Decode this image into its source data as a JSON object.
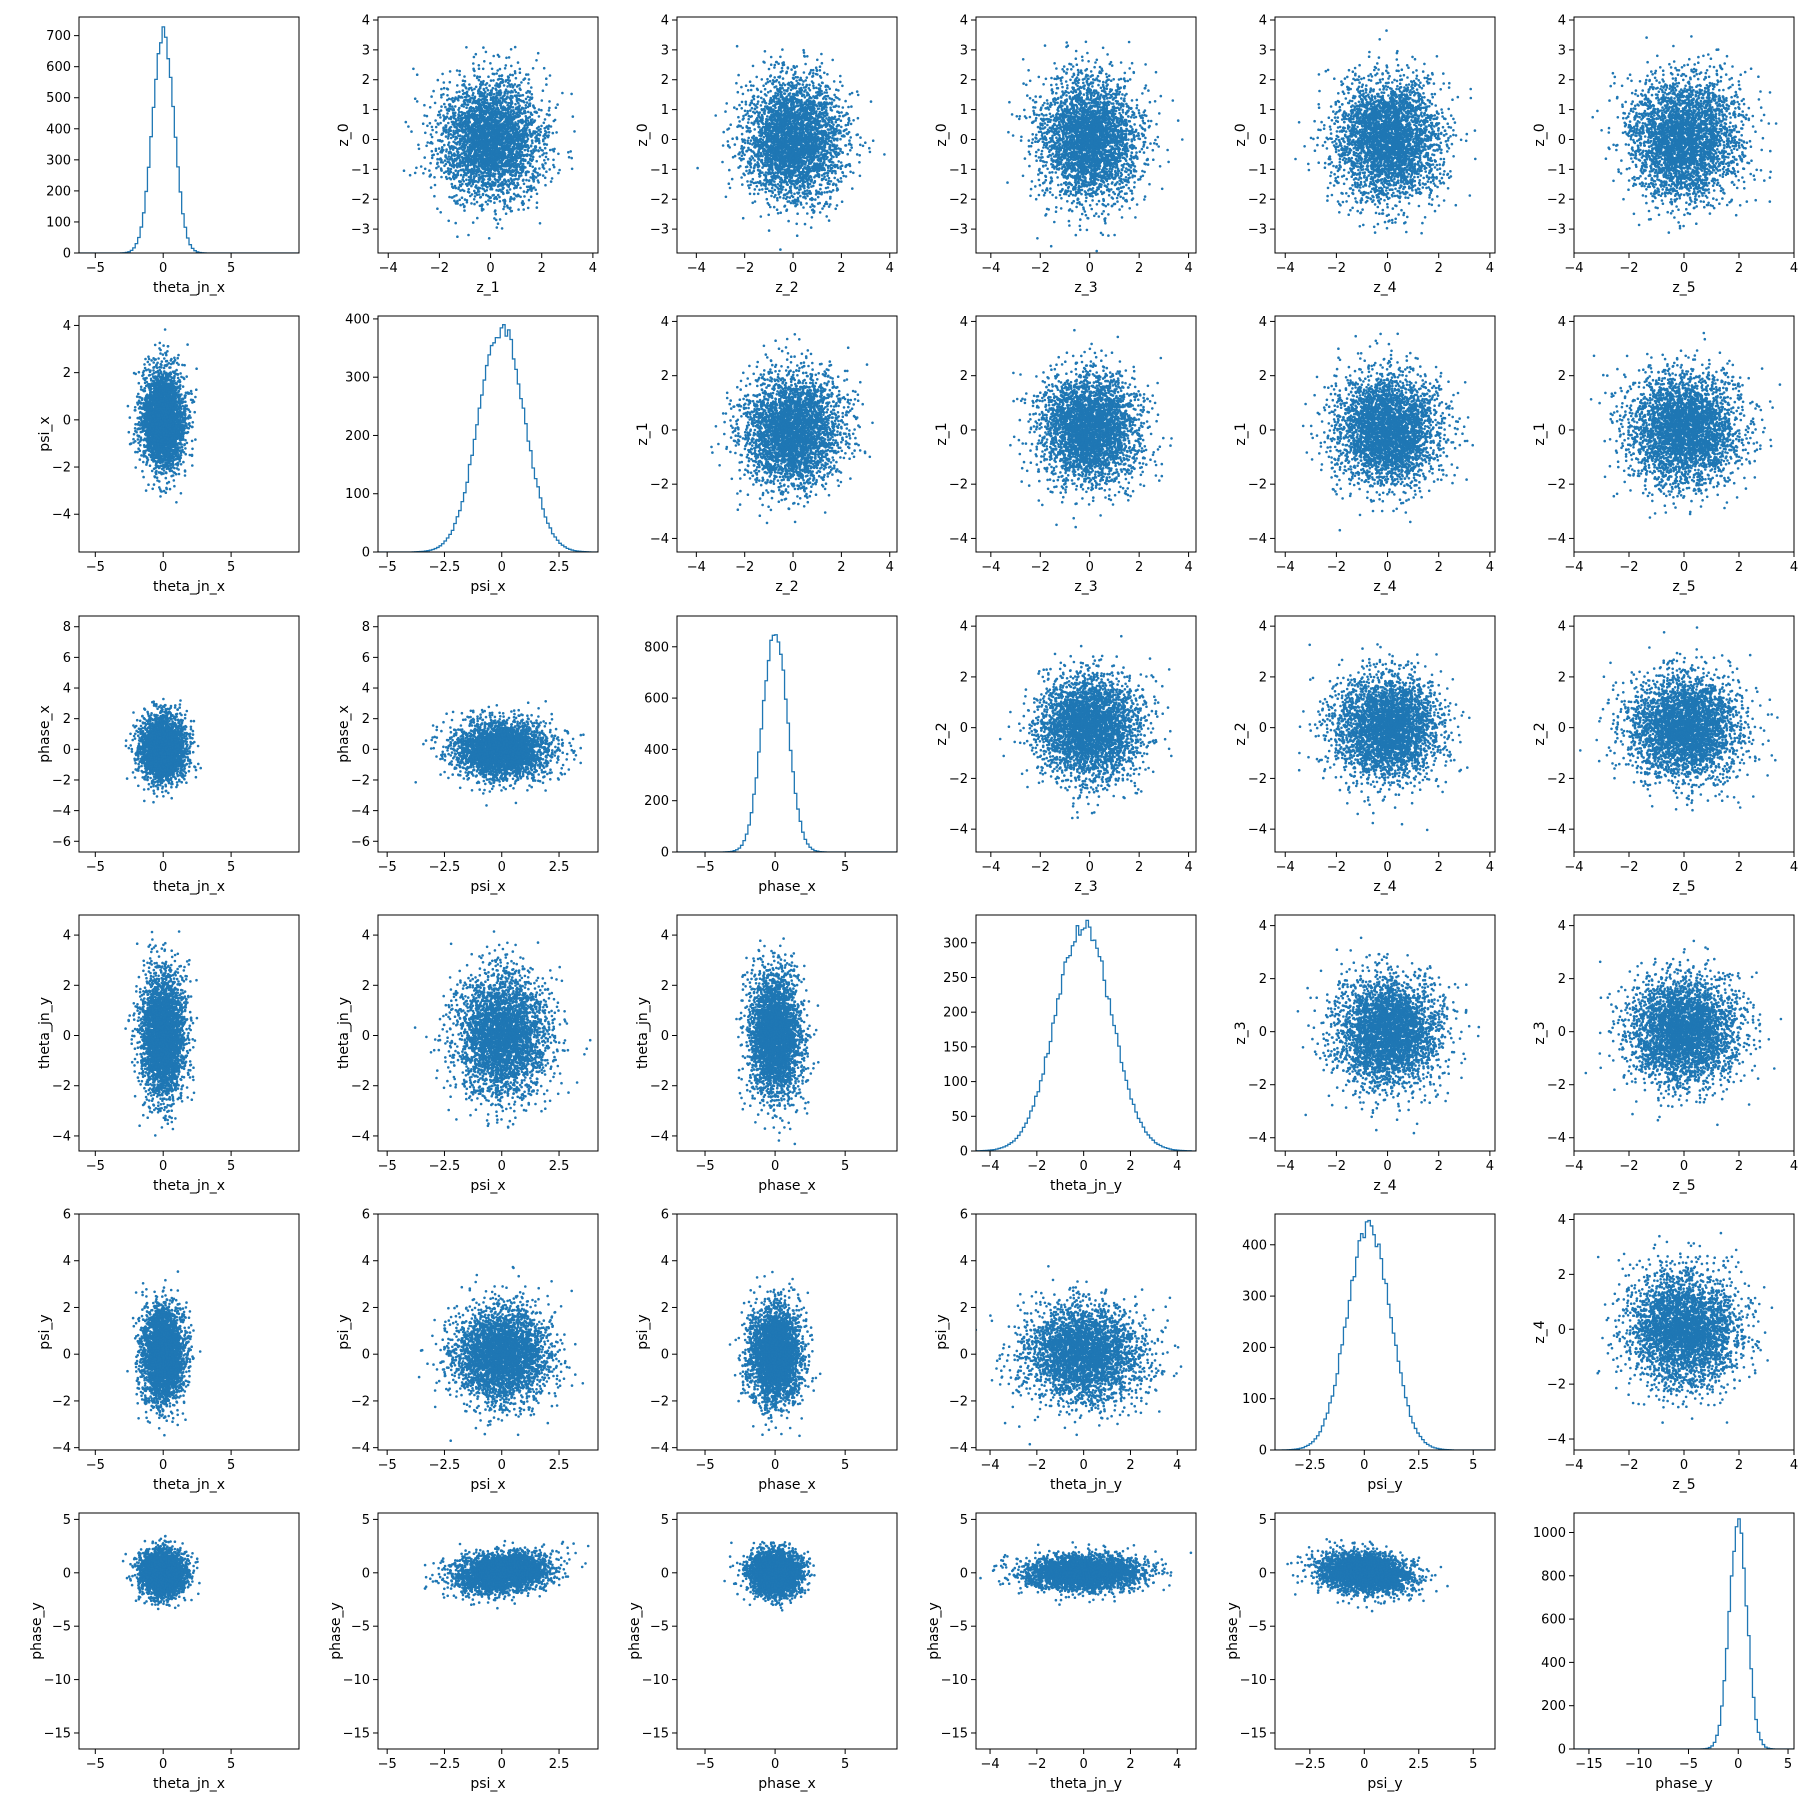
{
  "style": {
    "accent": "#1f77b4",
    "axis": "#000000",
    "background": "#ffffff"
  },
  "chart_data": [
    {
      "type": "histogram",
      "xlabel": "theta_jn_x",
      "ylabel": "",
      "xticks": [
        -5,
        0,
        5
      ],
      "yticks": [
        0,
        100,
        200,
        300,
        400,
        500,
        600,
        700
      ],
      "xlim": [
        -6.2,
        10
      ],
      "ylim": [
        0,
        760
      ],
      "peak": {
        "x": 0,
        "y": 715
      },
      "sd": 0.78
    },
    {
      "type": "scatter",
      "xlabel": "z_1",
      "ylabel": "z_0",
      "xticks": [
        -4,
        -2,
        0,
        2,
        4
      ],
      "yticks": [
        -3,
        -2,
        -1,
        0,
        1,
        2,
        3,
        4
      ],
      "xlim": [
        -4.4,
        4.2
      ],
      "ylim": [
        -3.8,
        4.1
      ],
      "sx": 1,
      "sy": 1,
      "rho": 0
    },
    {
      "type": "scatter",
      "xlabel": "z_2",
      "ylabel": "z_0",
      "xticks": [
        -4,
        -2,
        0,
        2,
        4
      ],
      "yticks": [
        -3,
        -2,
        -1,
        0,
        1,
        2,
        3,
        4
      ],
      "xlim": [
        -4.8,
        4.3
      ],
      "ylim": [
        -3.8,
        4.1
      ],
      "sx": 1,
      "sy": 1,
      "rho": 0
    },
    {
      "type": "scatter",
      "xlabel": "z_3",
      "ylabel": "z_0",
      "xticks": [
        -4,
        -2,
        0,
        2,
        4
      ],
      "yticks": [
        -3,
        -2,
        -1,
        0,
        1,
        2,
        3,
        4
      ],
      "xlim": [
        -4.6,
        4.3
      ],
      "ylim": [
        -3.8,
        4.1
      ],
      "sx": 1,
      "sy": 1,
      "rho": 0
    },
    {
      "type": "scatter",
      "xlabel": "z_4",
      "ylabel": "z_0",
      "xticks": [
        -4,
        -2,
        0,
        2,
        4
      ],
      "yticks": [
        -3,
        -2,
        -1,
        0,
        1,
        2,
        3,
        4
      ],
      "xlim": [
        -4.4,
        4.2
      ],
      "ylim": [
        -3.8,
        4.1
      ],
      "sx": 1,
      "sy": 1,
      "rho": 0
    },
    {
      "type": "scatter",
      "xlabel": "z_5",
      "ylabel": "z_0",
      "xticks": [
        -4,
        -2,
        0,
        2,
        4
      ],
      "yticks": [
        -3,
        -2,
        -1,
        0,
        1,
        2,
        3,
        4
      ],
      "xlim": [
        -4.0,
        4.0
      ],
      "ylim": [
        -3.8,
        4.1
      ],
      "sx": 1,
      "sy": 1,
      "rho": 0
    },
    {
      "type": "scatter",
      "xlabel": "theta_jn_x",
      "ylabel": "psi_x",
      "xticks": [
        -5,
        0,
        5
      ],
      "yticks": [
        -4,
        -2,
        0,
        2,
        4
      ],
      "xlim": [
        -6.2,
        10
      ],
      "ylim": [
        -5.6,
        4.4
      ],
      "sx": 0.78,
      "sy": 1,
      "rho": 0
    },
    {
      "type": "histogram",
      "xlabel": "psi_x",
      "ylabel": "",
      "xticks": [
        -5.0,
        -2.5,
        0.0,
        2.5
      ],
      "yticks": [
        0,
        100,
        200,
        300,
        400
      ],
      "xlim": [
        -5.4,
        4.2
      ],
      "ylim": [
        0,
        405
      ],
      "peak": {
        "x": 0,
        "y": 385
      },
      "sd": 1.0
    },
    {
      "type": "scatter",
      "xlabel": "z_2",
      "ylabel": "z_1",
      "xticks": [
        -4,
        -2,
        0,
        2,
        4
      ],
      "yticks": [
        -4,
        -2,
        0,
        2,
        4
      ],
      "xlim": [
        -4.8,
        4.3
      ],
      "ylim": [
        -4.5,
        4.2
      ],
      "sx": 1,
      "sy": 1,
      "rho": 0
    },
    {
      "type": "scatter",
      "xlabel": "z_3",
      "ylabel": "z_1",
      "xticks": [
        -4,
        -2,
        0,
        2,
        4
      ],
      "yticks": [
        -4,
        -2,
        0,
        2,
        4
      ],
      "xlim": [
        -4.6,
        4.3
      ],
      "ylim": [
        -4.5,
        4.2
      ],
      "sx": 1,
      "sy": 1,
      "rho": 0
    },
    {
      "type": "scatter",
      "xlabel": "z_4",
      "ylabel": "z_1",
      "xticks": [
        -4,
        -2,
        0,
        2,
        4
      ],
      "yticks": [
        -4,
        -2,
        0,
        2,
        4
      ],
      "xlim": [
        -4.4,
        4.2
      ],
      "ylim": [
        -4.5,
        4.2
      ],
      "sx": 1,
      "sy": 1,
      "rho": 0
    },
    {
      "type": "scatter",
      "xlabel": "z_5",
      "ylabel": "z_1",
      "xticks": [
        -4,
        -2,
        0,
        2,
        4
      ],
      "yticks": [
        -4,
        -2,
        0,
        2,
        4
      ],
      "xlim": [
        -4.0,
        4.0
      ],
      "ylim": [
        -4.5,
        4.2
      ],
      "sx": 1,
      "sy": 1,
      "rho": 0
    },
    {
      "type": "scatter",
      "xlabel": "theta_jn_x",
      "ylabel": "phase_x",
      "xticks": [
        -5,
        0,
        5
      ],
      "yticks": [
        -6,
        -4,
        -2,
        0,
        2,
        4,
        6,
        8
      ],
      "xlim": [
        -6.2,
        10
      ],
      "ylim": [
        -6.7,
        8.7
      ],
      "sx": 0.78,
      "sy": 1.0,
      "rho": 0
    },
    {
      "type": "scatter",
      "xlabel": "psi_x",
      "ylabel": "phase_x",
      "xticks": [
        -5.0,
        -2.5,
        0.0,
        2.5
      ],
      "yticks": [
        -6,
        -4,
        -2,
        0,
        2,
        4,
        6,
        8
      ],
      "xlim": [
        -5.4,
        4.2
      ],
      "ylim": [
        -6.7,
        8.7
      ],
      "sx": 1.0,
      "sy": 0.9,
      "rho": 0
    },
    {
      "type": "histogram",
      "xlabel": "phase_x",
      "ylabel": "",
      "xticks": [
        -5,
        0,
        5
      ],
      "yticks": [
        0,
        200,
        400,
        600,
        800
      ],
      "xlim": [
        -7,
        8.7
      ],
      "ylim": [
        0,
        920
      ],
      "peak": {
        "x": 0,
        "y": 880
      },
      "sd": 0.9
    },
    {
      "type": "scatter",
      "xlabel": "z_3",
      "ylabel": "z_2",
      "xticks": [
        -4,
        -2,
        0,
        2,
        4
      ],
      "yticks": [
        -4,
        -2,
        0,
        2,
        4
      ],
      "xlim": [
        -4.6,
        4.3
      ],
      "ylim": [
        -4.9,
        4.4
      ],
      "sx": 1,
      "sy": 1,
      "rho": 0
    },
    {
      "type": "scatter",
      "xlabel": "z_4",
      "ylabel": "z_2",
      "xticks": [
        -4,
        -2,
        0,
        2,
        4
      ],
      "yticks": [
        -4,
        -2,
        0,
        2,
        4
      ],
      "xlim": [
        -4.4,
        4.2
      ],
      "ylim": [
        -4.9,
        4.4
      ],
      "sx": 1,
      "sy": 1,
      "rho": 0
    },
    {
      "type": "scatter",
      "xlabel": "z_5",
      "ylabel": "z_2",
      "xticks": [
        -4,
        -2,
        0,
        2,
        4
      ],
      "yticks": [
        -4,
        -2,
        0,
        2,
        4
      ],
      "xlim": [
        -4.0,
        4.0
      ],
      "ylim": [
        -4.9,
        4.4
      ],
      "sx": 1,
      "sy": 1,
      "rho": 0
    },
    {
      "type": "scatter",
      "xlabel": "theta_jn_x",
      "ylabel": "theta_jn_y",
      "xticks": [
        -5,
        0,
        5
      ],
      "yticks": [
        -4,
        -2,
        0,
        2,
        4
      ],
      "xlim": [
        -6.2,
        10
      ],
      "ylim": [
        -4.6,
        4.8
      ],
      "sx": 0.78,
      "sy": 1.2,
      "rho": 0
    },
    {
      "type": "scatter",
      "xlabel": "psi_x",
      "ylabel": "theta_jn_y",
      "xticks": [
        -5.0,
        -2.5,
        0.0,
        2.5
      ],
      "yticks": [
        -4,
        -2,
        0,
        2,
        4
      ],
      "xlim": [
        -5.4,
        4.2
      ],
      "ylim": [
        -4.6,
        4.8
      ],
      "sx": 1.0,
      "sy": 1.2,
      "rho": 0
    },
    {
      "type": "scatter",
      "xlabel": "phase_x",
      "ylabel": "theta_jn_y",
      "xticks": [
        -5,
        0,
        5
      ],
      "yticks": [
        -4,
        -2,
        0,
        2,
        4
      ],
      "xlim": [
        -7,
        8.7
      ],
      "ylim": [
        -4.6,
        4.8
      ],
      "sx": 0.9,
      "sy": 1.2,
      "rho": 0
    },
    {
      "type": "histogram",
      "xlabel": "theta_jn_y",
      "ylabel": "",
      "xticks": [
        -4,
        -2,
        0,
        2,
        4
      ],
      "yticks": [
        0,
        50,
        100,
        150,
        200,
        250,
        300
      ],
      "xlim": [
        -4.6,
        4.8
      ],
      "ylim": [
        0,
        340
      ],
      "peak": {
        "x": 0,
        "y": 325
      },
      "sd": 1.2
    },
    {
      "type": "scatter",
      "xlabel": "z_4",
      "ylabel": "z_3",
      "xticks": [
        -4,
        -2,
        0,
        2,
        4
      ],
      "yticks": [
        -4,
        -2,
        0,
        2,
        4
      ],
      "xlim": [
        -4.4,
        4.2
      ],
      "ylim": [
        -4.5,
        4.4
      ],
      "sx": 1,
      "sy": 1,
      "rho": 0
    },
    {
      "type": "scatter",
      "xlabel": "z_5",
      "ylabel": "z_3",
      "xticks": [
        -4,
        -2,
        0,
        2,
        4
      ],
      "yticks": [
        -4,
        -2,
        0,
        2,
        4
      ],
      "xlim": [
        -4.0,
        4.0
      ],
      "ylim": [
        -4.5,
        4.4
      ],
      "sx": 1,
      "sy": 1,
      "rho": 0
    },
    {
      "type": "scatter",
      "xlabel": "theta_jn_x",
      "ylabel": "psi_y",
      "xticks": [
        -5,
        0,
        5
      ],
      "yticks": [
        -4,
        -2,
        0,
        2,
        4,
        6
      ],
      "xlim": [
        -6.2,
        10
      ],
      "ylim": [
        -4.1,
        6.0
      ],
      "sx": 0.78,
      "sy": 1.0,
      "rho": 0
    },
    {
      "type": "scatter",
      "xlabel": "psi_x",
      "ylabel": "psi_y",
      "xticks": [
        -5.0,
        -2.5,
        0.0,
        2.5
      ],
      "yticks": [
        -4,
        -2,
        0,
        2,
        4,
        6
      ],
      "xlim": [
        -5.4,
        4.2
      ],
      "ylim": [
        -4.1,
        6.0
      ],
      "sx": 1.0,
      "sy": 1.0,
      "rho": 0
    },
    {
      "type": "scatter",
      "xlabel": "phase_x",
      "ylabel": "psi_y",
      "xticks": [
        -5,
        0,
        5
      ],
      "yticks": [
        -4,
        -2,
        0,
        2,
        4,
        6
      ],
      "xlim": [
        -7,
        8.7
      ],
      "ylim": [
        -4.1,
        6.0
      ],
      "sx": 0.9,
      "sy": 1.0,
      "rho": 0
    },
    {
      "type": "scatter",
      "xlabel": "theta_jn_y",
      "ylabel": "psi_y",
      "xticks": [
        -4,
        -2,
        0,
        2,
        4
      ],
      "yticks": [
        -4,
        -2,
        0,
        2,
        4,
        6
      ],
      "xlim": [
        -4.6,
        4.8
      ],
      "ylim": [
        -4.1,
        6.0
      ],
      "sx": 1.2,
      "sy": 1.0,
      "rho": 0
    },
    {
      "type": "histogram",
      "xlabel": "psi_y",
      "ylabel": "",
      "xticks": [
        -2.5,
        0.0,
        2.5,
        5.0
      ],
      "yticks": [
        0,
        100,
        200,
        300,
        400
      ],
      "xlim": [
        -4.1,
        6.0
      ],
      "ylim": [
        0,
        460
      ],
      "peak": {
        "x": 0.2,
        "y": 435
      },
      "sd": 1.0
    },
    {
      "type": "scatter",
      "xlabel": "z_5",
      "ylabel": "z_4",
      "xticks": [
        -4,
        -2,
        0,
        2,
        4
      ],
      "yticks": [
        -4,
        -2,
        0,
        2,
        4
      ],
      "xlim": [
        -4.0,
        4.0
      ],
      "ylim": [
        -4.4,
        4.2
      ],
      "sx": 1,
      "sy": 1,
      "rho": 0
    },
    {
      "type": "scatter",
      "xlabel": "theta_jn_x",
      "ylabel": "phase_y",
      "xticks": [
        -5,
        0,
        5
      ],
      "yticks": [
        -15,
        -10,
        -5,
        0,
        5
      ],
      "xlim": [
        -6.2,
        10
      ],
      "ylim": [
        -16.5,
        5.6
      ],
      "sx": 0.78,
      "sy": 1.0,
      "rho": 0
    },
    {
      "type": "scatter",
      "xlabel": "psi_x",
      "ylabel": "phase_y",
      "xticks": [
        -5.0,
        -2.5,
        0.0,
        2.5
      ],
      "yticks": [
        -15,
        -10,
        -5,
        0,
        5
      ],
      "xlim": [
        -5.4,
        4.2
      ],
      "ylim": [
        -16.5,
        5.6
      ],
      "sx": 1.0,
      "sy": 0.9,
      "rho": 0.2
    },
    {
      "type": "scatter",
      "xlabel": "phase_x",
      "ylabel": "phase_y",
      "xticks": [
        -5,
        0,
        5
      ],
      "yticks": [
        -15,
        -10,
        -5,
        0,
        5
      ],
      "xlim": [
        -7,
        8.7
      ],
      "ylim": [
        -16.5,
        5.6
      ],
      "sx": 0.9,
      "sy": 1.0,
      "rho": 0
    },
    {
      "type": "scatter",
      "xlabel": "theta_jn_y",
      "ylabel": "phase_y",
      "xticks": [
        -4,
        -2,
        0,
        2,
        4
      ],
      "yticks": [
        -15,
        -10,
        -5,
        0,
        5
      ],
      "xlim": [
        -4.6,
        4.8
      ],
      "ylim": [
        -16.5,
        5.6
      ],
      "sx": 1.2,
      "sy": 0.8,
      "rho": 0
    },
    {
      "type": "scatter",
      "xlabel": "psi_y",
      "ylabel": "phase_y",
      "xticks": [
        -2.5,
        0.0,
        2.5,
        5.0
      ],
      "yticks": [
        -15,
        -10,
        -5,
        0,
        5
      ],
      "xlim": [
        -4.1,
        6.0
      ],
      "ylim": [
        -16.5,
        5.6
      ],
      "sx": 1.0,
      "sy": 0.9,
      "rho": -0.2
    },
    {
      "type": "histogram",
      "xlabel": "phase_y",
      "ylabel": "",
      "xticks": [
        -15,
        -10,
        -5,
        0,
        5
      ],
      "yticks": [
        0,
        200,
        400,
        600,
        800,
        1000
      ],
      "xlim": [
        -16.5,
        5.6
      ],
      "ylim": [
        0,
        1090
      ],
      "peak": {
        "x": 0,
        "y": 1030
      },
      "sd": 0.9
    }
  ]
}
